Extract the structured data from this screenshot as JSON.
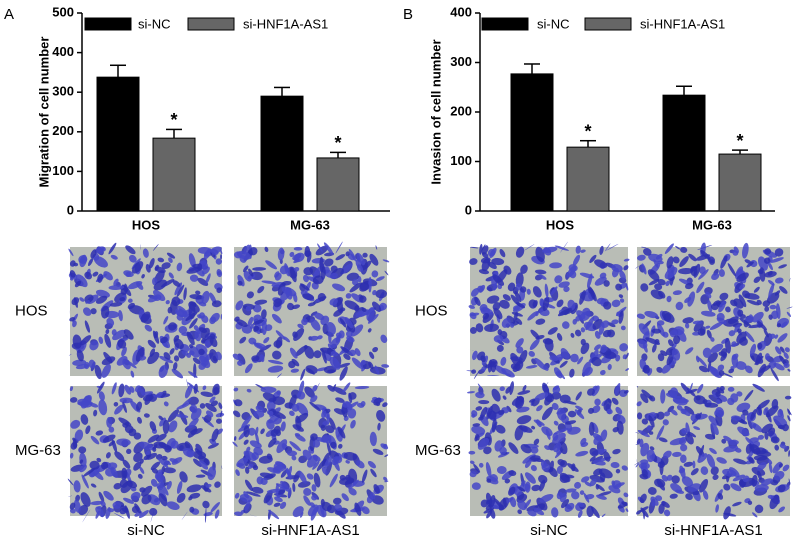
{
  "chart_data": [
    {
      "type": "bar",
      "ylabel": "Migration of cell number",
      "categories": [
        "HOS",
        "MG-63"
      ],
      "series": [
        {
          "name": "si-NC",
          "color": "#000000",
          "values": [
            338,
            290
          ],
          "errors": [
            30,
            22
          ]
        },
        {
          "name": "si-HNF1A-AS1",
          "color": "#666666",
          "values": [
            184,
            134
          ],
          "errors": [
            22,
            14
          ],
          "markers": [
            "*",
            "*"
          ]
        }
      ],
      "ylim": [
        0,
        500
      ],
      "yticks": [
        0,
        100,
        200,
        300,
        400,
        500
      ],
      "legend": "top"
    },
    {
      "type": "bar",
      "ylabel": "Invasion of cell number",
      "categories": [
        "HOS",
        "MG-63"
      ],
      "series": [
        {
          "name": "si-NC",
          "color": "#000000",
          "values": [
            277,
            234
          ],
          "errors": [
            20,
            18
          ]
        },
        {
          "name": "si-HNF1A-AS1",
          "color": "#666666",
          "values": [
            129,
            115
          ],
          "errors": [
            13,
            8
          ],
          "markers": [
            "*",
            "*"
          ]
        }
      ],
      "ylim": [
        0,
        400
      ],
      "yticks": [
        0,
        100,
        200,
        300,
        400
      ],
      "legend": "top"
    }
  ],
  "panels": [
    {
      "label": "A",
      "image_rows": [
        "HOS",
        "MG-63"
      ],
      "image_cols": [
        "si-NC",
        "si-HNF1A-AS1"
      ]
    },
    {
      "label": "B",
      "image_rows": [
        "HOS",
        "MG-63"
      ],
      "image_cols": [
        "si-NC",
        "si-HNF1A-AS1"
      ]
    }
  ]
}
